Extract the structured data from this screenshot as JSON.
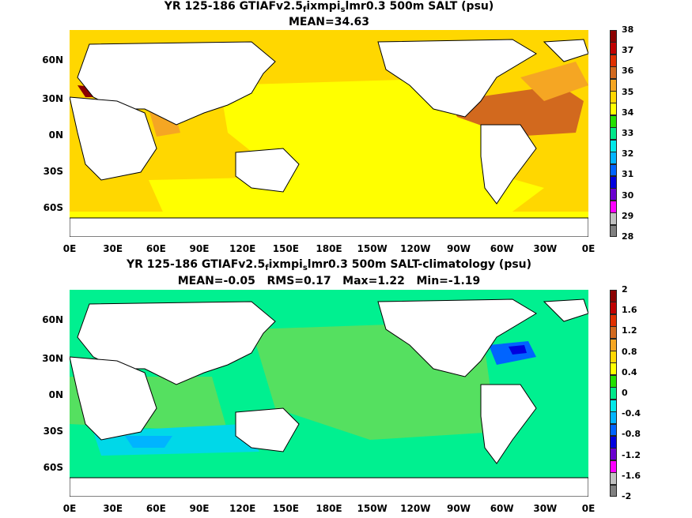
{
  "panels": [
    {
      "id": "top",
      "title_parts": [
        "YR 125-186 GTIAFv2.5",
        "f",
        "ixmpi",
        "s",
        "lmr0.3 500m SALT (psu)"
      ],
      "subtitle": "MEAN=34.63",
      "ocean_color": "#ffff00",
      "colorbar": {
        "labels": [
          "38",
          "37",
          "36",
          "35",
          "34",
          "33",
          "32",
          "31",
          "30",
          "29",
          "28"
        ],
        "colors": [
          "#8b0000",
          "#c00000",
          "#e03000",
          "#d2691e",
          "#f5a623",
          "#ffd700",
          "#ffff00",
          "#22e000",
          "#00e88a",
          "#00e8e8",
          "#00b4ff",
          "#0064ff",
          "#0000e0",
          "#6a00d0",
          "#ff00ff",
          "#c0c0c0",
          "#808080"
        ]
      }
    },
    {
      "id": "bottom",
      "title": "YR 125-186 GTIAFv2.5",
      "title_parts": [
        "YR 125-186 GTIAFv2.5",
        "f",
        "ixmpi",
        "s",
        "lmr0.3 500m SALT-climatology (psu)"
      ],
      "subtitle": "MEAN=-0.05   RMS=0.17   Max=1.22   Min=-1.19",
      "ocean_color": "#00f090",
      "colorbar": {
        "labels": [
          "2",
          "1.6",
          "1.2",
          "0.8",
          "0.4",
          "0",
          "-0.4",
          "-0.8",
          "-1.2",
          "-1.6",
          "-2"
        ],
        "colors": [
          "#8b0000",
          "#c00000",
          "#e03000",
          "#d2691e",
          "#f5a623",
          "#ffd700",
          "#ffff00",
          "#22e000",
          "#00e88a",
          "#00e8e8",
          "#00b4ff",
          "#0064ff",
          "#0000e0",
          "#6a00d0",
          "#ff00ff",
          "#c0c0c0",
          "#808080"
        ]
      }
    }
  ],
  "lat_labels": [
    "60N",
    "30N",
    "0N",
    "30S",
    "60S"
  ],
  "lon_labels": [
    "0E",
    "30E",
    "60E",
    "90E",
    "120E",
    "150E",
    "180E",
    "150W",
    "120W",
    "90W",
    "60W",
    "30W",
    "0E"
  ]
}
